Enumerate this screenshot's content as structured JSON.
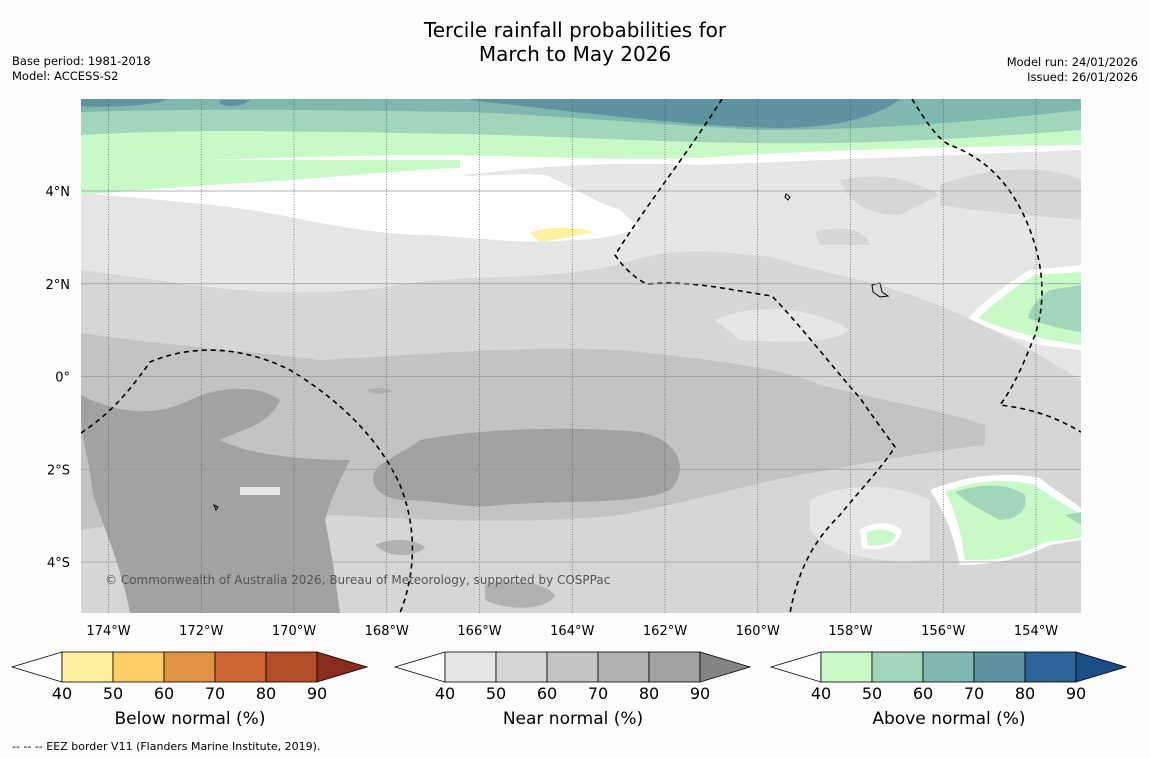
{
  "title_line1": "Tercile rainfall probabilities for",
  "title_line2": "March to May 2026",
  "base_period": "Base period: 1981-2018",
  "model": "Model: ACCESS-S2",
  "model_run": "Model run: 24/01/2026",
  "issued": "Issued: 26/01/2026",
  "copyright": "© Commonwealth of Australia 2026, Bureau of Meteorology, supported by COSPPac",
  "footer": "--  --  -- EEZ border V11 (Flanders Marine Institute, 2019).",
  "lat_labels": [
    "4°N",
    "2°N",
    "0°",
    "2°S",
    "4°S"
  ],
  "lon_labels": [
    "174°W",
    "172°W",
    "170°W",
    "168°W",
    "166°W",
    "164°W",
    "162°W",
    "160°W",
    "158°W",
    "156°W",
    "154°W"
  ],
  "legends": [
    {
      "label": "Below normal (%)",
      "ticks": [
        "40",
        "50",
        "60",
        "70",
        "80",
        "90"
      ],
      "colors": [
        "#ffffff",
        "#fff0a0",
        "#ffcc66",
        "#e09344",
        "#cd6634",
        "#b24d2a",
        "#8a2c1c"
      ]
    },
    {
      "label": "Near normal (%)",
      "ticks": [
        "40",
        "50",
        "60",
        "70",
        "80",
        "90"
      ],
      "colors": [
        "#ffffff",
        "#e6e6e6",
        "#d6d6d6",
        "#c3c3c3",
        "#b1b1b1",
        "#a2a2a2",
        "#858585"
      ]
    },
    {
      "label": "Above normal (%)",
      "ticks": [
        "40",
        "50",
        "60",
        "70",
        "80",
        "90"
      ],
      "colors": [
        "#ffffff",
        "#c8fac8",
        "#a2d6bb",
        "#7fb8ae",
        "#5e93a0",
        "#2e6399",
        "#1a4c86"
      ]
    }
  ]
}
